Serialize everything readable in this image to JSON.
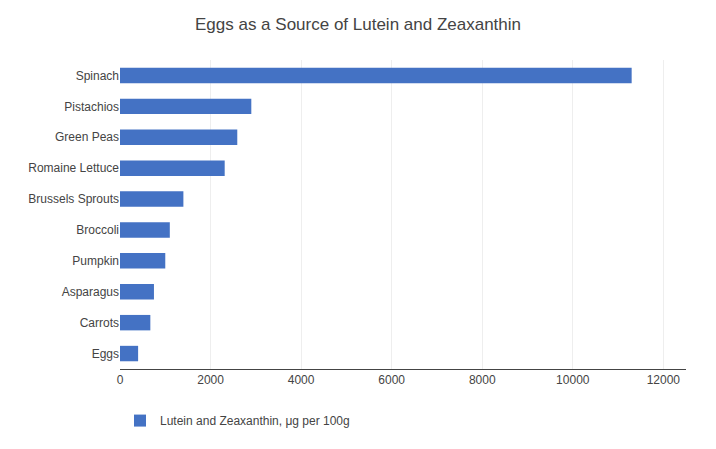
{
  "chart_data": {
    "type": "bar",
    "orientation": "horizontal",
    "title": "Eggs as a Source of Lutein and Zeaxanthin",
    "categories": [
      "Spinach",
      "Pistachios",
      "Green Peas",
      "Romaine Lettuce",
      "Brussels Sprouts",
      "Broccoli",
      "Pumpkin",
      "Asparagus",
      "Carrots",
      "Eggs"
    ],
    "series": [
      {
        "name": "Lutein and Zeaxanthin, μg per 100g",
        "color": "#4472C4",
        "values": [
          11300,
          2900,
          2590,
          2312,
          1400,
          1100,
          1000,
          750,
          670,
          400
        ]
      }
    ],
    "xlim": [
      0,
      12500
    ],
    "xticks": [
      0,
      2000,
      4000,
      6000,
      8000,
      10000,
      12000
    ],
    "grid": true,
    "legend": "bottom"
  }
}
